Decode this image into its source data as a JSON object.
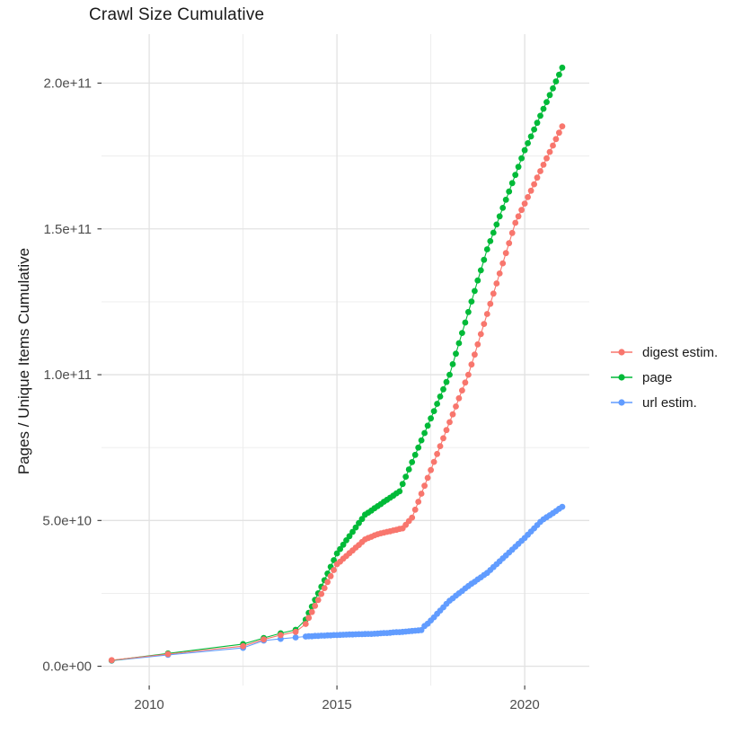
{
  "title": "Crawl Size Cumulative",
  "y_axis": {
    "title": "Pages / Unique Items Cumulative"
  },
  "legend": {
    "position": "right",
    "items": [
      {
        "label": "digest estim.",
        "color": "#F8766D"
      },
      {
        "label": "page",
        "color": "#00BA38"
      },
      {
        "label": "url estim.",
        "color": "#619CFF"
      }
    ]
  },
  "chart_data": {
    "type": "line",
    "title": "Crawl Size Cumulative",
    "xlabel": "",
    "ylabel": "Pages / Unique Items Cumulative",
    "values_unit": "1e9 (points stored as [year, value_in_billions])",
    "xlim": [
      2008.73,
      2021.72
    ],
    "ylim_e9": [
      -6.6,
      216.8
    ],
    "grid": true,
    "background": "#FFFFFF",
    "gridline_major_color": "#E2E2E2",
    "gridline_minor_color": "#ECECEC",
    "x_ticks": [
      {
        "value": 2010,
        "label": "2010"
      },
      {
        "value": 2015,
        "label": "2015"
      },
      {
        "value": 2020,
        "label": "2020"
      }
    ],
    "x_minor_ticks": [
      2012.5,
      2017.5
    ],
    "y_ticks": [
      {
        "value_e9": 0,
        "label": "0.0e+00"
      },
      {
        "value_e9": 50,
        "label": "5.0e+10"
      },
      {
        "value_e9": 100,
        "label": "1.0e+11"
      },
      {
        "value_e9": 150,
        "label": "1.5e+11"
      },
      {
        "value_e9": 200,
        "label": "2.0e+11"
      }
    ],
    "y_minor_ticks_e9": [
      25,
      75,
      125,
      175
    ],
    "series": [
      {
        "name": "digest estim.",
        "color": "#F8766D",
        "points": [
          [
            2009.0,
            2.1
          ],
          [
            2010.5,
            4.2
          ],
          [
            2012.5,
            6.9
          ],
          [
            2013.05,
            9.2
          ],
          [
            2013.5,
            10.7
          ],
          [
            2013.9,
            11.8
          ],
          [
            2014.167,
            14.5
          ],
          [
            2014.25,
            16.6
          ],
          [
            2014.333,
            18.6
          ],
          [
            2014.417,
            20.7
          ],
          [
            2014.5,
            22.7
          ],
          [
            2014.583,
            24.8
          ],
          [
            2014.667,
            26.8
          ],
          [
            2014.75,
            28.9
          ],
          [
            2014.833,
            30.9
          ],
          [
            2014.917,
            33.0
          ],
          [
            2015.0,
            35.0
          ],
          [
            2015.083,
            35.9
          ],
          [
            2015.167,
            36.9
          ],
          [
            2015.25,
            37.8
          ],
          [
            2015.333,
            38.8
          ],
          [
            2015.417,
            39.7
          ],
          [
            2015.5,
            40.7
          ],
          [
            2015.583,
            41.6
          ],
          [
            2015.667,
            42.6
          ],
          [
            2015.75,
            43.5
          ],
          [
            2015.833,
            44.0
          ],
          [
            2015.917,
            44.4
          ],
          [
            2016.0,
            44.9
          ],
          [
            2016.083,
            45.3
          ],
          [
            2016.167,
            45.6
          ],
          [
            2016.25,
            45.8
          ],
          [
            2016.333,
            46.1
          ],
          [
            2016.417,
            46.3
          ],
          [
            2016.5,
            46.6
          ],
          [
            2016.583,
            46.8
          ],
          [
            2016.667,
            47.1
          ],
          [
            2016.75,
            47.3
          ],
          [
            2016.833,
            48.5
          ],
          [
            2016.917,
            49.8
          ],
          [
            2017.0,
            51.0
          ],
          [
            2017.083,
            53.7
          ],
          [
            2017.167,
            56.4
          ],
          [
            2017.25,
            59.2
          ],
          [
            2017.333,
            61.9
          ],
          [
            2017.417,
            64.6
          ],
          [
            2017.5,
            67.3
          ],
          [
            2017.583,
            70.1
          ],
          [
            2017.667,
            72.8
          ],
          [
            2017.75,
            75.5
          ],
          [
            2017.833,
            78.2
          ],
          [
            2017.917,
            81.0
          ],
          [
            2018.0,
            83.7
          ],
          [
            2018.083,
            86.4
          ],
          [
            2018.167,
            89.1
          ],
          [
            2018.25,
            91.9
          ],
          [
            2018.333,
            94.6
          ],
          [
            2018.417,
            97.3
          ],
          [
            2018.5,
            100.0
          ],
          [
            2018.583,
            103.5
          ],
          [
            2018.667,
            106.9
          ],
          [
            2018.75,
            110.4
          ],
          [
            2018.833,
            113.9
          ],
          [
            2018.917,
            117.4
          ],
          [
            2019.0,
            120.8
          ],
          [
            2019.083,
            124.3
          ],
          [
            2019.167,
            127.8
          ],
          [
            2019.25,
            131.3
          ],
          [
            2019.333,
            134.7
          ],
          [
            2019.417,
            138.2
          ],
          [
            2019.5,
            141.7
          ],
          [
            2019.583,
            145.1
          ],
          [
            2019.667,
            148.6
          ],
          [
            2019.75,
            152.1
          ],
          [
            2019.833,
            154.3
          ],
          [
            2019.917,
            156.5
          ],
          [
            2020.0,
            158.7
          ],
          [
            2020.083,
            160.9
          ],
          [
            2020.167,
            163.1
          ],
          [
            2020.25,
            165.3
          ],
          [
            2020.333,
            167.6
          ],
          [
            2020.417,
            169.8
          ],
          [
            2020.5,
            172.0
          ],
          [
            2020.583,
            174.2
          ],
          [
            2020.667,
            176.4
          ],
          [
            2020.75,
            178.6
          ],
          [
            2020.833,
            180.8
          ],
          [
            2020.917,
            183.0
          ],
          [
            2021.0,
            185.2
          ]
        ]
      },
      {
        "name": "page",
        "color": "#00BA38",
        "points": [
          [
            2009.0,
            2.0
          ],
          [
            2010.5,
            4.4
          ],
          [
            2012.5,
            7.6
          ],
          [
            2013.05,
            9.7
          ],
          [
            2013.5,
            11.3
          ],
          [
            2013.9,
            12.5
          ],
          [
            2014.167,
            16.0
          ],
          [
            2014.25,
            18.3
          ],
          [
            2014.333,
            20.5
          ],
          [
            2014.417,
            22.8
          ],
          [
            2014.5,
            25.0
          ],
          [
            2014.583,
            27.3
          ],
          [
            2014.667,
            29.5
          ],
          [
            2014.75,
            31.8
          ],
          [
            2014.833,
            34.1
          ],
          [
            2014.917,
            36.4
          ],
          [
            2015.0,
            38.7
          ],
          [
            2015.083,
            40.2
          ],
          [
            2015.167,
            41.7
          ],
          [
            2015.25,
            43.2
          ],
          [
            2015.333,
            44.6
          ],
          [
            2015.417,
            46.1
          ],
          [
            2015.5,
            47.6
          ],
          [
            2015.583,
            49.1
          ],
          [
            2015.667,
            50.5
          ],
          [
            2015.75,
            52.0
          ],
          [
            2015.833,
            52.7
          ],
          [
            2015.917,
            53.4
          ],
          [
            2016.0,
            54.2
          ],
          [
            2016.083,
            54.9
          ],
          [
            2016.167,
            55.6
          ],
          [
            2016.25,
            56.4
          ],
          [
            2016.333,
            57.1
          ],
          [
            2016.417,
            57.8
          ],
          [
            2016.5,
            58.5
          ],
          [
            2016.583,
            59.3
          ],
          [
            2016.667,
            60.0
          ],
          [
            2016.75,
            62.5
          ],
          [
            2016.833,
            65.0
          ],
          [
            2016.917,
            67.5
          ],
          [
            2017.0,
            70.0
          ],
          [
            2017.083,
            72.5
          ],
          [
            2017.167,
            75.0
          ],
          [
            2017.25,
            77.5
          ],
          [
            2017.333,
            80.0
          ],
          [
            2017.417,
            82.5
          ],
          [
            2017.5,
            85.0
          ],
          [
            2017.583,
            87.5
          ],
          [
            2017.667,
            90.0
          ],
          [
            2017.75,
            92.5
          ],
          [
            2017.833,
            95.0
          ],
          [
            2017.917,
            97.5
          ],
          [
            2018.0,
            100.0
          ],
          [
            2018.083,
            103.6
          ],
          [
            2018.167,
            107.2
          ],
          [
            2018.25,
            110.8
          ],
          [
            2018.333,
            114.3
          ],
          [
            2018.417,
            117.9
          ],
          [
            2018.5,
            121.5
          ],
          [
            2018.583,
            125.1
          ],
          [
            2018.667,
            128.7
          ],
          [
            2018.75,
            132.3
          ],
          [
            2018.833,
            135.8
          ],
          [
            2018.917,
            139.4
          ],
          [
            2019.0,
            143.0
          ],
          [
            2019.083,
            145.8
          ],
          [
            2019.167,
            148.7
          ],
          [
            2019.25,
            151.5
          ],
          [
            2019.333,
            154.3
          ],
          [
            2019.417,
            157.2
          ],
          [
            2019.5,
            160.0
          ],
          [
            2019.583,
            162.8
          ],
          [
            2019.667,
            165.7
          ],
          [
            2019.75,
            168.5
          ],
          [
            2019.833,
            171.3
          ],
          [
            2019.917,
            174.2
          ],
          [
            2020.0,
            177.0
          ],
          [
            2020.083,
            179.4
          ],
          [
            2020.167,
            181.7
          ],
          [
            2020.25,
            184.1
          ],
          [
            2020.333,
            186.4
          ],
          [
            2020.417,
            188.8
          ],
          [
            2020.5,
            191.2
          ],
          [
            2020.583,
            193.5
          ],
          [
            2020.667,
            195.9
          ],
          [
            2020.75,
            198.2
          ],
          [
            2020.833,
            200.6
          ],
          [
            2020.917,
            202.9
          ],
          [
            2021.0,
            205.3
          ]
        ]
      },
      {
        "name": "url estim.",
        "color": "#619CFF",
        "points": [
          [
            2009.0,
            1.9
          ],
          [
            2010.5,
            3.9
          ],
          [
            2012.5,
            6.3
          ],
          [
            2013.05,
            8.8
          ],
          [
            2013.5,
            9.4
          ],
          [
            2013.9,
            9.9
          ],
          [
            2014.167,
            10.2
          ],
          [
            2014.25,
            10.3
          ],
          [
            2014.333,
            10.3
          ],
          [
            2014.417,
            10.4
          ],
          [
            2014.5,
            10.4
          ],
          [
            2014.583,
            10.5
          ],
          [
            2014.667,
            10.5
          ],
          [
            2014.75,
            10.6
          ],
          [
            2014.833,
            10.6
          ],
          [
            2014.917,
            10.7
          ],
          [
            2015.0,
            10.7
          ],
          [
            2015.083,
            10.75
          ],
          [
            2015.167,
            10.8
          ],
          [
            2015.25,
            10.85
          ],
          [
            2015.333,
            10.9
          ],
          [
            2015.417,
            10.9
          ],
          [
            2015.5,
            10.95
          ],
          [
            2015.583,
            11.0
          ],
          [
            2015.667,
            11.0
          ],
          [
            2015.75,
            11.05
          ],
          [
            2015.833,
            11.1
          ],
          [
            2015.917,
            11.1
          ],
          [
            2016.0,
            11.15
          ],
          [
            2016.083,
            11.2
          ],
          [
            2016.167,
            11.3
          ],
          [
            2016.25,
            11.4
          ],
          [
            2016.333,
            11.4
          ],
          [
            2016.417,
            11.5
          ],
          [
            2016.5,
            11.6
          ],
          [
            2016.583,
            11.7
          ],
          [
            2016.667,
            11.7
          ],
          [
            2016.75,
            11.8
          ],
          [
            2016.833,
            11.9
          ],
          [
            2016.917,
            12.0
          ],
          [
            2017.0,
            12.1
          ],
          [
            2017.083,
            12.2
          ],
          [
            2017.167,
            12.3
          ],
          [
            2017.25,
            12.4
          ],
          [
            2017.333,
            13.8
          ],
          [
            2017.417,
            14.6
          ],
          [
            2017.5,
            15.7
          ],
          [
            2017.583,
            16.8
          ],
          [
            2017.667,
            18.0
          ],
          [
            2017.75,
            19.1
          ],
          [
            2017.833,
            20.2
          ],
          [
            2017.917,
            21.4
          ],
          [
            2018.0,
            22.5
          ],
          [
            2018.083,
            23.3
          ],
          [
            2018.167,
            24.2
          ],
          [
            2018.25,
            25.0
          ],
          [
            2018.333,
            25.8
          ],
          [
            2018.417,
            26.7
          ],
          [
            2018.5,
            27.5
          ],
          [
            2018.583,
            28.3
          ],
          [
            2018.667,
            29.0
          ],
          [
            2018.75,
            29.8
          ],
          [
            2018.833,
            30.5
          ],
          [
            2018.917,
            31.3
          ],
          [
            2019.0,
            32.0
          ],
          [
            2019.083,
            33.0
          ],
          [
            2019.167,
            34.0
          ],
          [
            2019.25,
            35.0
          ],
          [
            2019.333,
            36.0
          ],
          [
            2019.417,
            37.0
          ],
          [
            2019.5,
            38.0
          ],
          [
            2019.583,
            39.0
          ],
          [
            2019.667,
            40.0
          ],
          [
            2019.75,
            41.0
          ],
          [
            2019.833,
            42.0
          ],
          [
            2019.917,
            43.0
          ],
          [
            2020.0,
            44.0
          ],
          [
            2020.083,
            45.1
          ],
          [
            2020.167,
            46.2
          ],
          [
            2020.25,
            47.3
          ],
          [
            2020.333,
            48.4
          ],
          [
            2020.417,
            49.5
          ],
          [
            2020.5,
            50.4
          ],
          [
            2020.583,
            51.1
          ],
          [
            2020.667,
            51.8
          ],
          [
            2020.75,
            52.5
          ],
          [
            2020.833,
            53.2
          ],
          [
            2020.917,
            54.0
          ],
          [
            2021.0,
            54.7
          ]
        ]
      }
    ],
    "legend_position": "right"
  }
}
